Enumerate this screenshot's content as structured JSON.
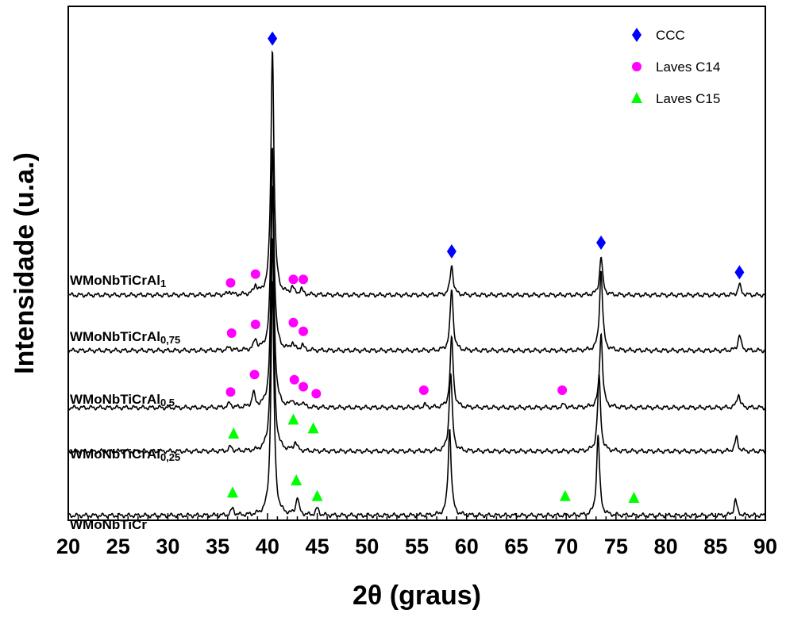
{
  "chart_data": {
    "type": "line",
    "xlabel": "2θ (graus)",
    "ylabel": "Intensidade (u.a.)",
    "xlim": [
      20,
      90
    ],
    "x_ticks": [
      "20",
      "25",
      "30",
      "35",
      "40",
      "45",
      "50",
      "55",
      "60",
      "65",
      "70",
      "75",
      "80",
      "85",
      "90"
    ],
    "grid": false,
    "legend_position": "top-right",
    "legend": [
      {
        "label": "CCC",
        "marker": "diamond",
        "color": "#0000ff"
      },
      {
        "label": "Laves C14",
        "marker": "circle",
        "color": "#ff00ff"
      },
      {
        "label": "Laves C15",
        "marker": "triangle",
        "color": "#00ff00"
      }
    ],
    "colors": {
      "line": "#000000",
      "ccc": "#0000ff",
      "c14": "#ff00ff",
      "c15": "#00ff00"
    },
    "series": [
      {
        "name": "WMoNbTiCr",
        "label_main": "WMoNbTiCr",
        "label_sub": "",
        "peaks": [
          [
            36.5,
            0.4
          ],
          [
            40.5,
            13.5
          ],
          [
            43.0,
            1.0
          ],
          [
            45.0,
            0.4
          ],
          [
            58.3,
            5.0
          ],
          [
            73.2,
            4.6
          ],
          [
            87.0,
            0.9
          ]
        ],
        "markers": [
          {
            "x": 36.5,
            "level": 1.3,
            "phase": "c15"
          },
          {
            "x": 42.9,
            "level": 2.0,
            "phase": "c15"
          },
          {
            "x": 45.0,
            "level": 1.1,
            "phase": "c15"
          },
          {
            "x": 69.9,
            "level": 1.1,
            "phase": "c15"
          },
          {
            "x": 76.8,
            "level": 1.0,
            "phase": "c15"
          }
        ]
      },
      {
        "name": "WMoNbTiCrAl0,25",
        "label_main": "WMoNbTiCrAl",
        "label_sub": "0,25",
        "peaks": [
          [
            36.3,
            0.25
          ],
          [
            40.5,
            12.2
          ],
          [
            42.8,
            0.5
          ],
          [
            58.4,
            4.5
          ],
          [
            73.3,
            4.3
          ],
          [
            87.1,
            0.8
          ]
        ],
        "markers": [
          {
            "x": 36.6,
            "level": 1.0,
            "phase": "c15"
          },
          {
            "x": 42.6,
            "level": 1.8,
            "phase": "c15"
          },
          {
            "x": 44.6,
            "level": 1.3,
            "phase": "c15"
          }
        ]
      },
      {
        "name": "WMoNbTiCrAl0,5",
        "label_main": "WMoNbTiCrAl",
        "label_sub": "0,5",
        "peaks": [
          [
            36.2,
            0.25
          ],
          [
            38.6,
            0.8
          ],
          [
            40.5,
            12.8
          ],
          [
            42.5,
            0.4
          ],
          [
            43.5,
            0.3
          ],
          [
            55.8,
            0.15
          ],
          [
            58.5,
            4.0
          ],
          [
            69.8,
            0.2
          ],
          [
            73.5,
            4.3
          ],
          [
            87.3,
            0.8
          ]
        ],
        "markers": [
          {
            "x": 36.3,
            "level": 0.9,
            "phase": "c14"
          },
          {
            "x": 38.7,
            "level": 1.9,
            "phase": "c14"
          },
          {
            "x": 42.7,
            "level": 1.6,
            "phase": "c14"
          },
          {
            "x": 43.6,
            "level": 1.2,
            "phase": "c14"
          },
          {
            "x": 44.9,
            "level": 0.8,
            "phase": "c14"
          },
          {
            "x": 55.7,
            "level": 1.0,
            "phase": "c14"
          },
          {
            "x": 69.6,
            "level": 1.0,
            "phase": "c14"
          }
        ]
      },
      {
        "name": "WMoNbTiCrAl0,75",
        "label_main": "WMoNbTiCrAl",
        "label_sub": "0,75",
        "peaks": [
          [
            36.2,
            0.2
          ],
          [
            38.8,
            0.6
          ],
          [
            40.5,
            11.7
          ],
          [
            42.5,
            0.4
          ],
          [
            43.5,
            0.3
          ],
          [
            58.5,
            3.5
          ],
          [
            73.5,
            4.6
          ],
          [
            87.4,
            0.9
          ]
        ],
        "markers": [
          {
            "x": 36.4,
            "level": 1.0,
            "phase": "c14"
          },
          {
            "x": 38.8,
            "level": 1.5,
            "phase": "c14"
          },
          {
            "x": 42.6,
            "level": 1.6,
            "phase": "c14"
          },
          {
            "x": 43.6,
            "level": 1.1,
            "phase": "c14"
          }
        ]
      },
      {
        "name": "WMoNbTiCrAl1",
        "label_main": "WMoNbTiCrAl",
        "label_sub": "1",
        "peaks": [
          [
            36.2,
            0.2
          ],
          [
            38.8,
            0.5
          ],
          [
            40.5,
            14.1
          ],
          [
            42.5,
            0.4
          ],
          [
            43.4,
            0.3
          ],
          [
            58.5,
            1.7
          ],
          [
            73.5,
            2.2
          ],
          [
            87.4,
            0.6
          ]
        ],
        "markers": [
          {
            "x": 36.3,
            "level": 0.7,
            "phase": "c14"
          },
          {
            "x": 38.8,
            "level": 1.2,
            "phase": "c14"
          },
          {
            "x": 42.6,
            "level": 0.9,
            "phase": "c14"
          },
          {
            "x": 43.6,
            "level": 0.9,
            "phase": "c14"
          },
          {
            "x": 40.5,
            "level": 14.7,
            "phase": "ccc"
          },
          {
            "x": 58.5,
            "level": 2.5,
            "phase": "ccc"
          },
          {
            "x": 73.5,
            "level": 3.0,
            "phase": "ccc"
          },
          {
            "x": 87.4,
            "level": 1.3,
            "phase": "ccc"
          }
        ]
      }
    ]
  }
}
